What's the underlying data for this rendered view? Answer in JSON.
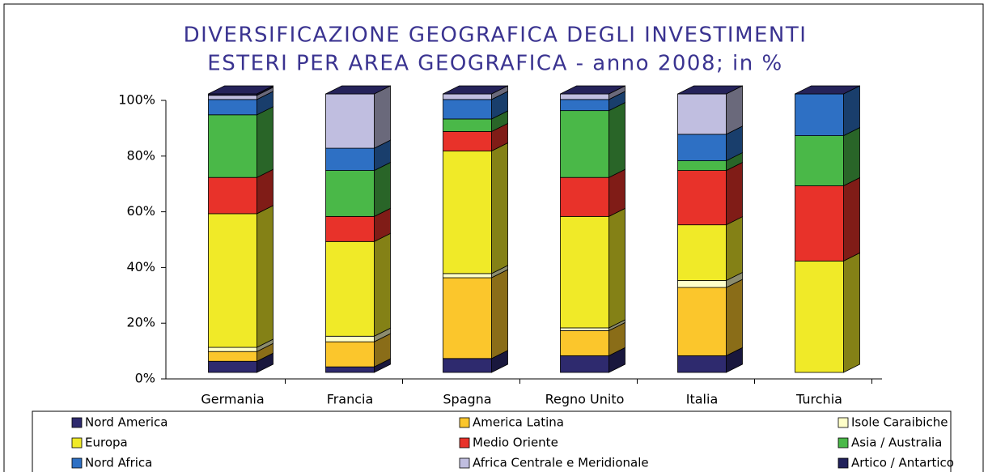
{
  "chart_data": {
    "type": "bar",
    "title": [
      "DIVERSIFICAZIONE GEOGRAFICA DEGLI INVESTIMENTI",
      "ESTERI PER AREA GEOGRAFICA - anno 2008; in %"
    ],
    "categories": [
      "Germania",
      "Francia",
      "Spagna",
      "Regno Unito",
      "Italia",
      "Turchia"
    ],
    "stacked": true,
    "series": [
      {
        "name": "Nord America",
        "color": "#2e2a6e",
        "values": [
          4,
          2,
          5,
          6,
          6,
          0
        ]
      },
      {
        "name": "America Latina",
        "color": "#fbc62c",
        "values": [
          3.5,
          9,
          29,
          9,
          24.5,
          0
        ]
      },
      {
        "name": "Isole Caraibiche",
        "color": "#ffffc8",
        "values": [
          1.5,
          2,
          1.5,
          1,
          2.5,
          0
        ]
      },
      {
        "name": "Europa",
        "color": "#f0ea28",
        "values": [
          48,
          34,
          44,
          40,
          20,
          40
        ]
      },
      {
        "name": "Medio Oriente",
        "color": "#e8322a",
        "values": [
          13,
          9,
          7,
          14,
          19.5,
          27
        ]
      },
      {
        "name": "Asia / Australia",
        "color": "#4ab848",
        "values": [
          22.5,
          16.5,
          4.5,
          24,
          3.5,
          18
        ]
      },
      {
        "name": "Nord Africa",
        "color": "#2e70c4",
        "values": [
          5.5,
          8,
          7,
          4,
          9.5,
          15
        ]
      },
      {
        "name": "Africa Centrale e Meridionale",
        "color": "#c0bee0",
        "values": [
          1.5,
          19.5,
          2,
          2,
          14.5,
          0
        ]
      },
      {
        "name": "Artico / Antartico",
        "color": "#20205a",
        "values": [
          0.5,
          0,
          0,
          0,
          0,
          0
        ]
      }
    ],
    "ylim": [
      0,
      100
    ],
    "yticks": [
      {
        "value": 0,
        "label": "0%"
      },
      {
        "value": 20,
        "label": "20%"
      },
      {
        "value": 40,
        "label": "40%"
      },
      {
        "value": 60,
        "label": "60%"
      },
      {
        "value": 80,
        "label": "80%"
      },
      {
        "value": 100,
        "label": "100%"
      }
    ],
    "legend": "bottom"
  }
}
